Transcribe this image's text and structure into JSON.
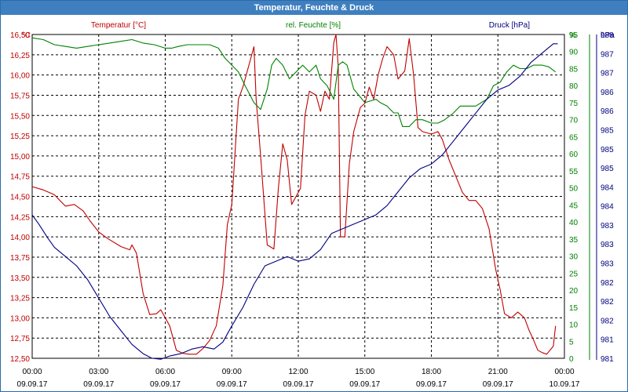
{
  "window": {
    "title": "Temperatur, Feuchte & Druck"
  },
  "chart_data": {
    "type": "line",
    "title": "Temperatur, Feuchte & Druck",
    "x_ticks": [
      {
        "time": "00:00",
        "date": "09.09.17"
      },
      {
        "time": "03:00",
        "date": "09.09.17"
      },
      {
        "time": "06:00",
        "date": "09.09.17"
      },
      {
        "time": "09:00",
        "date": "09.09.17"
      },
      {
        "time": "12:00",
        "date": "09.09.17"
      },
      {
        "time": "15:00",
        "date": "09.09.17"
      },
      {
        "time": "18:00",
        "date": "09.09.17"
      },
      {
        "time": "21:00",
        "date": "09.09.17"
      },
      {
        "time": "00:00",
        "date": "10.09.17"
      }
    ],
    "x_range_hours": [
      0,
      24
    ],
    "grid": true,
    "axes": {
      "temperature": {
        "label": "Temperatur [°C]",
        "unit": "°C",
        "color": "#c00000",
        "side": "left",
        "range": [
          12.5,
          16.5
        ],
        "ticks": [
          "12,50",
          "12,75",
          "13,00",
          "13,25",
          "13,50",
          "13,75",
          "14,00",
          "14,25",
          "14,50",
          "14,75",
          "15,00",
          "15,25",
          "15,50",
          "15,75",
          "16,00",
          "16,25",
          "16,50"
        ]
      },
      "humidity": {
        "label": "rel. Feuchte [%]",
        "unit": "%",
        "color": "#008000",
        "side": "right-inner",
        "range": [
          0,
          95
        ],
        "ticks": [
          "0",
          "5",
          "10",
          "15",
          "20",
          "25",
          "30",
          "35",
          "40",
          "45",
          "50",
          "55",
          "60",
          "65",
          "70",
          "75",
          "80",
          "85",
          "90",
          "95"
        ]
      },
      "pressure": {
        "label": "Druck [hPa]",
        "unit": "hPa",
        "color": "#000080",
        "side": "right-outer",
        "range": [
          981,
          988
        ],
        "ticks": [
          "981",
          "981",
          "982",
          "982",
          "982",
          "983",
          "983",
          "983",
          "984",
          "984",
          "985",
          "985",
          "985",
          "986",
          "986",
          "987",
          "987",
          "988"
        ]
      }
    },
    "series": [
      {
        "name": "Temperatur [°C]",
        "axis": "temperature",
        "color": "#c00000",
        "points": [
          [
            0,
            14.62
          ],
          [
            0.5,
            14.58
          ],
          [
            1,
            14.52
          ],
          [
            1.25,
            14.45
          ],
          [
            1.5,
            14.38
          ],
          [
            1.9,
            14.4
          ],
          [
            2.3,
            14.32
          ],
          [
            2.6,
            14.2
          ],
          [
            3,
            14.06
          ],
          [
            3.4,
            13.98
          ],
          [
            4,
            13.88
          ],
          [
            4.4,
            13.84
          ],
          [
            4.5,
            13.9
          ],
          [
            4.7,
            13.8
          ],
          [
            5.0,
            13.3
          ],
          [
            5.3,
            13.04
          ],
          [
            5.6,
            13.05
          ],
          [
            5.8,
            13.1
          ],
          [
            6.0,
            13.0
          ],
          [
            6.2,
            12.9
          ],
          [
            6.5,
            12.6
          ],
          [
            6.8,
            12.56
          ],
          [
            7.1,
            12.55
          ],
          [
            7.4,
            12.55
          ],
          [
            7.7,
            12.62
          ],
          [
            8.0,
            12.72
          ],
          [
            8.3,
            12.9
          ],
          [
            8.6,
            13.4
          ],
          [
            8.8,
            14.15
          ],
          [
            9.0,
            14.4
          ],
          [
            9.3,
            15.7
          ],
          [
            9.5,
            15.85
          ],
          [
            9.8,
            16.15
          ],
          [
            10.0,
            16.35
          ],
          [
            10.1,
            15.7
          ],
          [
            10.3,
            15.0
          ],
          [
            10.6,
            13.9
          ],
          [
            10.9,
            13.85
          ],
          [
            11.1,
            14.6
          ],
          [
            11.3,
            15.15
          ],
          [
            11.5,
            14.95
          ],
          [
            11.7,
            14.4
          ],
          [
            11.9,
            14.5
          ],
          [
            12.1,
            14.6
          ],
          [
            12.3,
            15.5
          ],
          [
            12.5,
            15.8
          ],
          [
            12.8,
            15.75
          ],
          [
            13.0,
            15.55
          ],
          [
            13.2,
            15.8
          ],
          [
            13.4,
            15.7
          ],
          [
            13.6,
            16.4
          ],
          [
            13.7,
            16.5
          ],
          [
            13.8,
            16.1
          ],
          [
            13.9,
            14.0
          ],
          [
            14.1,
            14.0
          ],
          [
            14.3,
            14.9
          ],
          [
            14.5,
            15.3
          ],
          [
            14.8,
            15.6
          ],
          [
            15.0,
            15.65
          ],
          [
            15.2,
            15.85
          ],
          [
            15.4,
            15.7
          ],
          [
            15.6,
            16.0
          ],
          [
            15.8,
            16.2
          ],
          [
            16.0,
            16.35
          ],
          [
            16.3,
            16.25
          ],
          [
            16.5,
            15.95
          ],
          [
            16.8,
            16.05
          ],
          [
            17.0,
            16.45
          ],
          [
            17.2,
            16.0
          ],
          [
            17.4,
            15.35
          ],
          [
            17.6,
            15.3
          ],
          [
            18.0,
            15.27
          ],
          [
            18.3,
            15.3
          ],
          [
            18.5,
            15.2
          ],
          [
            18.8,
            14.95
          ],
          [
            19.1,
            14.75
          ],
          [
            19.4,
            14.55
          ],
          [
            19.7,
            14.45
          ],
          [
            20.0,
            14.45
          ],
          [
            20.3,
            14.35
          ],
          [
            20.6,
            14.1
          ],
          [
            20.9,
            13.6
          ],
          [
            21.1,
            13.35
          ],
          [
            21.3,
            13.05
          ],
          [
            21.6,
            13.0
          ],
          [
            21.9,
            13.07
          ],
          [
            22.2,
            13.0
          ],
          [
            22.4,
            12.85
          ],
          [
            22.6,
            12.73
          ],
          [
            22.8,
            12.6
          ],
          [
            23.0,
            12.57
          ],
          [
            23.2,
            12.55
          ],
          [
            23.5,
            12.65
          ],
          [
            23.6,
            12.9
          ]
        ]
      },
      {
        "name": "rel. Feuchte [%]",
        "axis": "humidity",
        "color": "#008000",
        "points": [
          [
            0,
            94
          ],
          [
            0.5,
            93.5
          ],
          [
            1,
            92
          ],
          [
            1.5,
            91.5
          ],
          [
            2,
            91
          ],
          [
            2.5,
            91.5
          ],
          [
            3,
            92
          ],
          [
            3.5,
            92.5
          ],
          [
            4,
            93
          ],
          [
            4.5,
            93.5
          ],
          [
            5,
            92.5
          ],
          [
            5.5,
            92
          ],
          [
            6,
            91
          ],
          [
            6.3,
            91
          ],
          [
            6.6,
            91.5
          ],
          [
            7,
            92
          ],
          [
            7.5,
            92
          ],
          [
            8,
            92
          ],
          [
            8.4,
            91
          ],
          [
            8.7,
            88
          ],
          [
            9.0,
            86
          ],
          [
            9.3,
            84
          ],
          [
            9.6,
            80
          ],
          [
            10.0,
            75
          ],
          [
            10.3,
            73
          ],
          [
            10.6,
            79
          ],
          [
            10.8,
            86
          ],
          [
            11.0,
            88
          ],
          [
            11.3,
            86
          ],
          [
            11.6,
            82
          ],
          [
            11.9,
            84
          ],
          [
            12.2,
            86
          ],
          [
            12.5,
            84
          ],
          [
            12.8,
            86
          ],
          [
            13.0,
            82
          ],
          [
            13.3,
            80
          ],
          [
            13.6,
            76
          ],
          [
            13.8,
            86
          ],
          [
            14.0,
            87
          ],
          [
            14.2,
            86
          ],
          [
            14.5,
            79
          ],
          [
            15.0,
            75
          ],
          [
            15.5,
            76
          ],
          [
            15.7,
            75
          ],
          [
            16.0,
            74
          ],
          [
            16.3,
            72
          ],
          [
            16.5,
            72
          ],
          [
            16.7,
            68
          ],
          [
            17.0,
            68
          ],
          [
            17.3,
            70
          ],
          [
            17.6,
            70
          ],
          [
            18.0,
            69
          ],
          [
            18.3,
            69
          ],
          [
            18.6,
            70
          ],
          [
            19.0,
            72
          ],
          [
            19.3,
            74
          ],
          [
            19.6,
            74
          ],
          [
            20.0,
            74
          ],
          [
            20.5,
            76
          ],
          [
            20.8,
            80
          ],
          [
            21.1,
            81
          ],
          [
            21.4,
            84
          ],
          [
            21.7,
            86
          ],
          [
            22.0,
            85
          ],
          [
            22.3,
            85
          ],
          [
            22.6,
            86
          ],
          [
            23.0,
            86
          ],
          [
            23.3,
            85.5
          ],
          [
            23.6,
            84
          ]
        ]
      },
      {
        "name": "Druck [hPa]",
        "axis": "pressure",
        "color": "#000080",
        "points": [
          [
            0,
            984.1
          ],
          [
            0.3,
            983.9
          ],
          [
            0.7,
            983.6
          ],
          [
            1,
            983.4
          ],
          [
            1.5,
            983.2
          ],
          [
            2,
            983.0
          ],
          [
            2.5,
            982.7
          ],
          [
            3,
            982.3
          ],
          [
            3.5,
            981.9
          ],
          [
            4,
            981.6
          ],
          [
            4.5,
            981.3
          ],
          [
            5,
            981.1
          ],
          [
            5.4,
            981.0
          ],
          [
            5.8,
            980.98
          ],
          [
            6.2,
            981.05
          ],
          [
            6.7,
            981.1
          ],
          [
            7.2,
            981.2
          ],
          [
            7.7,
            981.25
          ],
          [
            8.2,
            981.2
          ],
          [
            8.6,
            981.35
          ],
          [
            9.0,
            981.7
          ],
          [
            9.5,
            982.1
          ],
          [
            10,
            982.6
          ],
          [
            10.5,
            983.0
          ],
          [
            11,
            983.1
          ],
          [
            11.5,
            983.2
          ],
          [
            12,
            983.1
          ],
          [
            12.5,
            983.15
          ],
          [
            13,
            983.35
          ],
          [
            13.5,
            983.7
          ],
          [
            14,
            983.8
          ],
          [
            14.5,
            983.9
          ],
          [
            15,
            984.0
          ],
          [
            15.5,
            984.1
          ],
          [
            16,
            984.3
          ],
          [
            16.5,
            984.6
          ],
          [
            17,
            984.9
          ],
          [
            17.5,
            985.1
          ],
          [
            18,
            985.2
          ],
          [
            18.5,
            985.4
          ],
          [
            19,
            985.7
          ],
          [
            19.5,
            986.0
          ],
          [
            20,
            986.3
          ],
          [
            20.5,
            986.6
          ],
          [
            21,
            986.8
          ],
          [
            21.5,
            986.9
          ],
          [
            22,
            987.1
          ],
          [
            22.5,
            987.4
          ],
          [
            23,
            987.6
          ],
          [
            23.5,
            987.8
          ],
          [
            23.7,
            987.8
          ]
        ]
      }
    ]
  }
}
